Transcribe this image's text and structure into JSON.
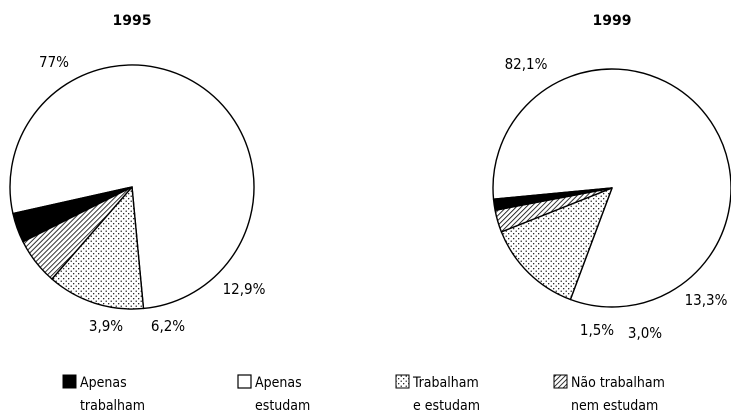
{
  "chart_data": [
    {
      "type": "pie",
      "title": "1995",
      "slices": [
        {
          "category": "Apenas estudam",
          "value": 77,
          "label": "77%"
        },
        {
          "category": "Trabalham e estudam",
          "value": 12.9,
          "label": "12,9%"
        },
        {
          "category": "Não trabalham nem estudam",
          "value": 6.2,
          "label": "6,2%"
        },
        {
          "category": "Apenas trabalham",
          "value": 3.9,
          "label": "3,9%"
        }
      ]
    },
    {
      "type": "pie",
      "title": "1999",
      "slices": [
        {
          "category": "Apenas estudam",
          "value": 82.1,
          "label": "82,1%"
        },
        {
          "category": "Trabalham e estudam",
          "value": 13.3,
          "label": "13,3%"
        },
        {
          "category": "Não trabalham nem estudam",
          "value": 3.0,
          "label": "3,0%"
        },
        {
          "category": "Apenas trabalham",
          "value": 1.5,
          "label": "1,5%"
        }
      ]
    }
  ],
  "legend": [
    {
      "category": "Apenas trabalham",
      "lines": [
        "Apenas",
        "trabalham"
      ],
      "fill": "solid"
    },
    {
      "category": "Apenas estudam",
      "lines": [
        "Apenas",
        "estudam"
      ],
      "fill": "none"
    },
    {
      "category": "Trabalham e estudam",
      "lines": [
        "Trabalham",
        "e estudam"
      ],
      "fill": "dots"
    },
    {
      "category": "Não trabalham nem estudam",
      "lines": [
        "Não trabalham",
        "nem estudam"
      ],
      "fill": "hatch"
    }
  ],
  "colors": {
    "ink": "#000000",
    "background": "#ffffff"
  }
}
